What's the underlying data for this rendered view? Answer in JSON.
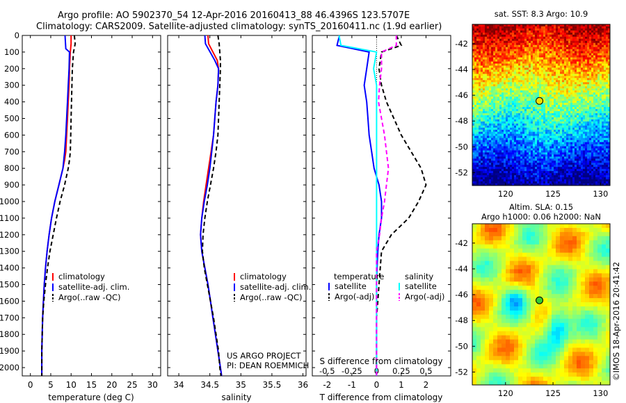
{
  "header": {
    "line1": "Argo profile: AO 5902370_54 12-Apr-2016 20160413_88 46.4396S 123.5707E",
    "line2": "Climatology: CARS2009. Satellite-adjusted climatology: synTS_20160411.nc (1.9d earlier)"
  },
  "colors": {
    "climatology": "#ff0000",
    "satellite": "#0000ff",
    "argo": "#000000",
    "s_satellite": "#00ffff",
    "s_argo": "#ff00ff"
  },
  "chart_data": [
    {
      "type": "line",
      "panel": "temperature",
      "xlabel": "temperature (deg C)",
      "xticks": [
        "0",
        "5",
        "10",
        "15",
        "20",
        "25",
        "30"
      ],
      "xlim": [
        -2,
        32
      ],
      "yticks": [
        "0",
        "100",
        "200",
        "300",
        "400",
        "500",
        "600",
        "700",
        "800",
        "900",
        "1000",
        "1100",
        "1200",
        "1300",
        "1400",
        "1500",
        "1600",
        "1700",
        "1800",
        "1900",
        "2000"
      ],
      "ylim": [
        0,
        2050
      ],
      "y_reversed": true,
      "legend": [
        "climatology",
        "satellite-adj. clim.",
        "Argo(..raw -QC)"
      ],
      "legend_position": "lower-center",
      "series": [
        {
          "name": "climatology",
          "color": "#ff0000",
          "dash": "",
          "x": [
            10.0,
            10.0,
            9.8,
            9.6,
            9.5,
            9.3,
            9.1,
            8.9,
            8.7,
            8.4,
            8.0,
            7.0,
            6.0,
            5.2,
            4.6,
            4.1,
            3.7,
            3.4,
            3.2,
            3.0,
            2.9,
            2.8,
            2.8
          ],
          "y": [
            0,
            50,
            100,
            200,
            300,
            400,
            500,
            600,
            700,
            750,
            800,
            900,
            1000,
            1100,
            1200,
            1300,
            1400,
            1500,
            1600,
            1700,
            1800,
            1900,
            2050
          ]
        },
        {
          "name": "satellite-adj. clim.",
          "color": "#0000ff",
          "dash": "",
          "x": [
            8.5,
            8.7,
            9.6,
            9.5,
            9.3,
            9.1,
            8.9,
            8.7,
            8.4,
            8.0,
            7.0,
            6.0,
            5.2,
            4.6,
            4.1,
            3.7,
            3.4,
            3.2,
            3.0,
            2.9,
            2.8,
            2.8
          ],
          "y": [
            0,
            80,
            100,
            200,
            300,
            400,
            500,
            600,
            700,
            800,
            900,
            1000,
            1100,
            1200,
            1300,
            1400,
            1500,
            1600,
            1700,
            1800,
            1900,
            2050
          ]
        },
        {
          "name": "Argo(..raw -QC)",
          "color": "#000000",
          "dash": "6,4",
          "x": [
            10.8,
            11.0,
            10.6,
            10.3,
            10.2,
            10.1,
            10.0,
            9.9,
            9.8,
            9.6,
            9.3,
            8.4,
            7.3,
            6.4,
            5.6,
            4.8,
            4.2,
            3.7,
            3.3,
            3.0,
            2.9,
            2.8,
            2.8
          ],
          "y": [
            0,
            50,
            100,
            200,
            300,
            400,
            500,
            600,
            700,
            750,
            800,
            900,
            1000,
            1100,
            1200,
            1300,
            1400,
            1500,
            1600,
            1700,
            1800,
            1900,
            2050
          ]
        }
      ]
    },
    {
      "type": "line",
      "panel": "salinity",
      "xlabel": "salinity",
      "xticks": [
        "34",
        "34.5",
        "35",
        "35.5",
        "36"
      ],
      "xlim": [
        33.82,
        36.05
      ],
      "ylim": [
        0,
        2050
      ],
      "y_reversed": true,
      "legend": [
        "climatology",
        "satellite-adj. clim.",
        "Argo(..raw -QC)"
      ],
      "legend_position": "lower-center",
      "series": [
        {
          "name": "climatology",
          "color": "#ff0000",
          "dash": "",
          "x": [
            34.47,
            34.48,
            34.62,
            34.64,
            34.63,
            34.6,
            34.58,
            34.56,
            34.52,
            34.48,
            34.44,
            34.4,
            34.37,
            34.35,
            34.37,
            34.42,
            34.47,
            34.51,
            34.55,
            34.59,
            34.63,
            34.67,
            34.69
          ],
          "y": [
            0,
            50,
            150,
            200,
            300,
            400,
            500,
            600,
            700,
            800,
            900,
            1000,
            1100,
            1200,
            1300,
            1400,
            1500,
            1600,
            1700,
            1800,
            1900,
            2000,
            2050
          ]
        },
        {
          "name": "satellite-adj. clim.",
          "color": "#0000ff",
          "dash": "",
          "x": [
            34.42,
            34.43,
            34.58,
            34.64,
            34.63,
            34.6,
            34.58,
            34.56,
            34.53,
            34.5,
            34.46,
            34.41,
            34.37,
            34.35,
            34.37,
            34.42,
            34.47,
            34.51,
            34.55,
            34.59,
            34.63,
            34.67,
            34.69
          ],
          "y": [
            0,
            50,
            150,
            200,
            300,
            400,
            500,
            600,
            700,
            800,
            900,
            1000,
            1100,
            1200,
            1300,
            1400,
            1500,
            1600,
            1700,
            1800,
            1900,
            2000,
            2050
          ]
        },
        {
          "name": "Argo(..raw -QC)",
          "color": "#000000",
          "dash": "6,4",
          "x": [
            34.63,
            34.65,
            34.67,
            34.67,
            34.66,
            34.65,
            34.64,
            34.63,
            34.6,
            34.56,
            34.51,
            34.46,
            34.42,
            34.39,
            34.38,
            34.41,
            34.46,
            34.51,
            34.56,
            34.6,
            34.64,
            34.66,
            34.68
          ],
          "y": [
            0,
            50,
            150,
            200,
            300,
            400,
            500,
            600,
            700,
            800,
            900,
            1000,
            1100,
            1200,
            1300,
            1400,
            1500,
            1600,
            1700,
            1800,
            1900,
            2000,
            2050
          ]
        }
      ]
    },
    {
      "type": "line",
      "panel": "difference",
      "xlabel": "T difference from climatology",
      "xlabel_top": "S difference from climatology",
      "xticks": [
        "-2",
        "-1",
        "0",
        "1",
        "2"
      ],
      "xlim": [
        -2.6,
        3.0
      ],
      "xticks_top": [
        "-0.5",
        "-0.25",
        "0",
        "0.25",
        "0.5"
      ],
      "xlim_top": [
        -0.65,
        0.75
      ],
      "ylim": [
        0,
        2050
      ],
      "y_reversed": true,
      "legend_temperature_title": "temperature",
      "legend_salinity_title": "salinity",
      "legend": [
        "satellite",
        "Argo(-adj)",
        "satellite",
        "Argo(-adj)"
      ],
      "series": [
        {
          "name": "satellite",
          "group": "temperature",
          "axis": "T",
          "color": "#0000ff",
          "dash": "",
          "x": [
            -1.5,
            -1.6,
            -0.3,
            -0.4,
            -0.5,
            -0.4,
            -0.35,
            -0.3,
            -0.2,
            -0.1,
            0.1,
            0.2,
            0.2,
            0.1,
            0.05,
            0.02,
            0.0,
            0.0,
            0.0,
            0.0,
            0.0
          ],
          "y": [
            0,
            60,
            100,
            200,
            300,
            400,
            500,
            600,
            700,
            800,
            900,
            1000,
            1100,
            1200,
            1300,
            1400,
            1500,
            1600,
            1700,
            1800,
            2050
          ]
        },
        {
          "name": "Argo(-adj)",
          "group": "temperature",
          "axis": "T",
          "color": "#000000",
          "dash": "6,4",
          "x": [
            0.8,
            1.0,
            0.2,
            0.1,
            0.2,
            0.4,
            0.7,
            1.0,
            1.4,
            1.8,
            2.0,
            1.7,
            1.3,
            0.6,
            0.2,
            0.15,
            0.1,
            0.05,
            0.0,
            0.0,
            0.0
          ],
          "y": [
            0,
            60,
            100,
            200,
            300,
            400,
            500,
            600,
            700,
            800,
            900,
            1000,
            1100,
            1200,
            1300,
            1400,
            1500,
            1600,
            1700,
            1800,
            2050
          ]
        },
        {
          "name": "satellite",
          "group": "salinity",
          "axis": "S",
          "color": "#00ffff",
          "dash": "",
          "x": [
            -0.38,
            -0.36,
            0.0,
            -0.03,
            0.0,
            0.0,
            0.0,
            0.0,
            0.0,
            0.0,
            0.0,
            0.0,
            0.0,
            0.0,
            0.0,
            0.0,
            0.0,
            0.0,
            0.0,
            0.0,
            0.0
          ],
          "y": [
            0,
            60,
            100,
            200,
            300,
            400,
            500,
            600,
            700,
            800,
            900,
            1000,
            1100,
            1200,
            1300,
            1400,
            1500,
            1600,
            1700,
            1800,
            2050
          ]
        },
        {
          "name": "Argo(-adj)",
          "group": "salinity",
          "axis": "S",
          "color": "#ff00ff",
          "dash": "6,4",
          "x": [
            0.2,
            0.2,
            0.05,
            0.05,
            0.03,
            0.02,
            0.05,
            0.08,
            0.1,
            0.12,
            0.1,
            0.08,
            0.05,
            0.03,
            0.0,
            0.0,
            0.0,
            0.0,
            0.0,
            0.0,
            0.0
          ],
          "y": [
            0,
            60,
            100,
            200,
            300,
            400,
            500,
            600,
            700,
            800,
            900,
            1000,
            1100,
            1200,
            1300,
            1400,
            1500,
            1600,
            1700,
            1800,
            2050
          ]
        }
      ]
    }
  ],
  "sst_map": {
    "title": "sat. SST: 8.3 Argo: 10.9",
    "xticks": [
      "120",
      "125",
      "130"
    ],
    "yticks": [
      "-42",
      "-44",
      "-46",
      "-48",
      "-50",
      "-52"
    ],
    "xlim": [
      116.5,
      131
    ],
    "ylim": [
      -53,
      -40.5
    ],
    "float_lon": 123.57,
    "float_lat": -46.44,
    "float_color": "#f0e000"
  },
  "sla_map": {
    "title_line1": "Altim. SLA: 0.15",
    "title_line2": "Argo h1000: 0.06 h2000: NaN",
    "xticks": [
      "120",
      "125",
      "130"
    ],
    "yticks": [
      "-42",
      "-44",
      "-46",
      "-48",
      "-50",
      "-52"
    ],
    "xlim": [
      116.5,
      131
    ],
    "ylim": [
      -53,
      -40.5
    ],
    "float_lon": 123.57,
    "float_lat": -46.44,
    "float_color": "#33cc33"
  },
  "annotations": {
    "project": "US ARGO PROJECT",
    "pi": "PI: DEAN ROEMMICH",
    "watermark": "©IMOS 18-Apr-2016 20:41:42"
  }
}
